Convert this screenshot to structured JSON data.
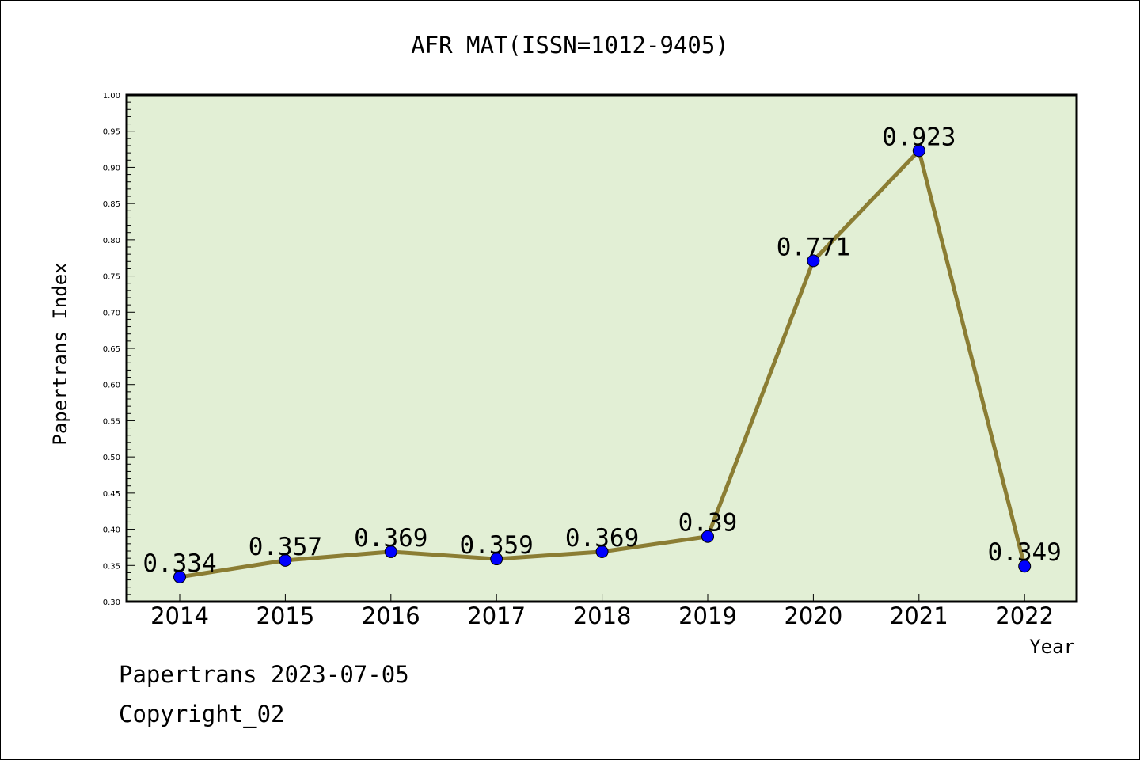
{
  "chart_data": {
    "type": "line",
    "title": "AFR MAT(ISSN=1012-9405)",
    "xlabel": "Year",
    "ylabel": "Papertrans Index",
    "categories": [
      "2014",
      "2015",
      "2016",
      "2017",
      "2018",
      "2019",
      "2020",
      "2021",
      "2022"
    ],
    "values": [
      0.334,
      0.357,
      0.369,
      0.359,
      0.369,
      0.39,
      0.771,
      0.923,
      0.349
    ],
    "data_labels": [
      "0.334",
      "0.357",
      "0.369",
      "0.359",
      "0.369",
      "0.39",
      "0.771",
      "0.923",
      "0.349"
    ],
    "ylim": [
      0.3,
      1.0
    ],
    "yticks": [
      "0.30",
      "0.35",
      "0.40",
      "0.45",
      "0.50",
      "0.55",
      "0.60",
      "0.65",
      "0.70",
      "0.75",
      "0.80",
      "0.85",
      "0.90",
      "0.95",
      "1.00"
    ],
    "grid": false,
    "colors": {
      "plot_background": "#e2efd5",
      "line": "#8b7d33",
      "marker": "#0000ff"
    }
  },
  "footer": {
    "line1": "Papertrans 2023-07-05",
    "line2": "Copyright_02"
  }
}
